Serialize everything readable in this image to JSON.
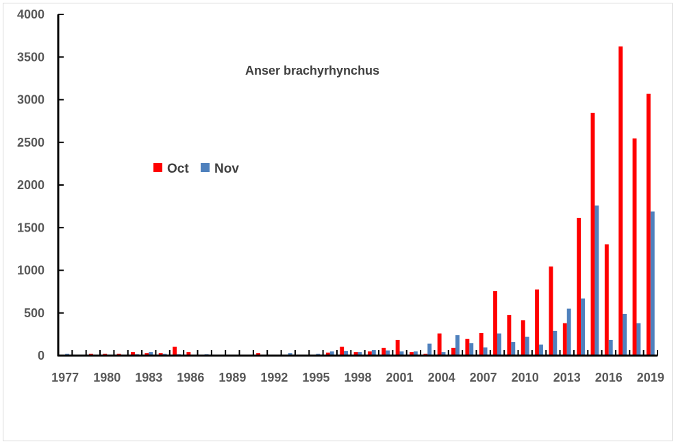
{
  "chart_data": {
    "type": "bar",
    "title": "Anser brachyrhynchus",
    "xlabel": "",
    "ylabel": "",
    "ylim": [
      0,
      4000
    ],
    "yticks": [
      0,
      500,
      1000,
      1500,
      2000,
      2500,
      3000,
      3500,
      4000
    ],
    "xtick_labels": [
      "1977",
      "1980",
      "1983",
      "1986",
      "1989",
      "1992",
      "1995",
      "1998",
      "2001",
      "2004",
      "2007",
      "2010",
      "2013",
      "2016",
      "2019"
    ],
    "legend_position": "center-left",
    "categories": [
      "1977",
      "1978",
      "1979",
      "1980",
      "1981",
      "1982",
      "1983",
      "1984",
      "1985",
      "1986",
      "1987",
      "1988",
      "1989",
      "1990",
      "1991",
      "1992",
      "1993",
      "1994",
      "1995",
      "1996",
      "1997",
      "1998",
      "1999",
      "2000",
      "2001",
      "2002",
      "2003",
      "2004",
      "2005",
      "2006",
      "2007",
      "2008",
      "2009",
      "2010",
      "2011",
      "2012",
      "2013",
      "2014",
      "2015",
      "2016",
      "2017",
      "2018",
      "2019"
    ],
    "series": [
      {
        "name": "Oct",
        "color": "#ff0000",
        "values": [
          10,
          5,
          20,
          20,
          20,
          40,
          30,
          30,
          105,
          40,
          10,
          5,
          0,
          0,
          30,
          10,
          10,
          5,
          10,
          35,
          105,
          40,
          50,
          90,
          185,
          40,
          20,
          260,
          90,
          195,
          265,
          755,
          475,
          415,
          775,
          1045,
          380,
          1615,
          2845,
          1305,
          3625,
          2545,
          3070
        ]
      },
      {
        "name": "Nov",
        "color": "#4f81bd",
        "values": [
          20,
          10,
          10,
          10,
          10,
          15,
          40,
          20,
          15,
          10,
          15,
          5,
          0,
          0,
          10,
          5,
          30,
          5,
          20,
          50,
          55,
          40,
          65,
          60,
          50,
          50,
          140,
          40,
          240,
          145,
          95,
          260,
          160,
          220,
          130,
          290,
          550,
          670,
          1760,
          185,
          490,
          380,
          1690
        ]
      }
    ]
  }
}
